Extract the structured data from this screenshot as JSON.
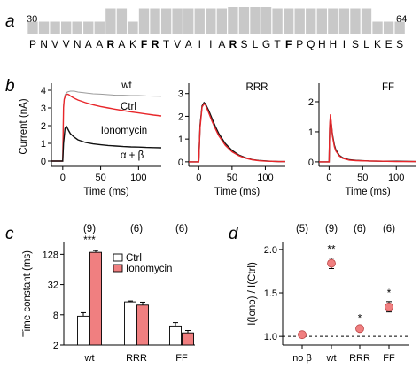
{
  "panel_letters": {
    "a": "a",
    "b": "b",
    "c": "c",
    "d": "d"
  },
  "sequence": {
    "start_label": "30",
    "end_label": "64",
    "residues": [
      {
        "aa": "P",
        "c": "#000000"
      },
      {
        "aa": "N",
        "c": "#000000"
      },
      {
        "aa": "V",
        "c": "#000000"
      },
      {
        "aa": "V",
        "c": "#000000"
      },
      {
        "aa": "N",
        "c": "#000000"
      },
      {
        "aa": "A",
        "c": "#000000"
      },
      {
        "aa": "A",
        "c": "#000000"
      },
      {
        "aa": "R",
        "c": "#1d3fb0"
      },
      {
        "aa": "A",
        "c": "#000000"
      },
      {
        "aa": "K",
        "c": "#000000"
      },
      {
        "aa": "F",
        "c": "#1f9a1f"
      },
      {
        "aa": "R",
        "c": "#1d3fb0"
      },
      {
        "aa": "T",
        "c": "#000000"
      },
      {
        "aa": "V",
        "c": "#000000"
      },
      {
        "aa": "A",
        "c": "#000000"
      },
      {
        "aa": "I",
        "c": "#000000"
      },
      {
        "aa": "I",
        "c": "#000000"
      },
      {
        "aa": "A",
        "c": "#000000"
      },
      {
        "aa": "R",
        "c": "#1d3fb0"
      },
      {
        "aa": "S",
        "c": "#000000"
      },
      {
        "aa": "L",
        "c": "#000000"
      },
      {
        "aa": "G",
        "c": "#000000"
      },
      {
        "aa": "T",
        "c": "#000000"
      },
      {
        "aa": "F",
        "c": "#1f9a1f"
      },
      {
        "aa": "P",
        "c": "#000000"
      },
      {
        "aa": "Q",
        "c": "#000000"
      },
      {
        "aa": "H",
        "c": "#000000"
      },
      {
        "aa": "H",
        "c": "#000000"
      },
      {
        "aa": "I",
        "c": "#000000"
      },
      {
        "aa": "S",
        "c": "#000000"
      },
      {
        "aa": "L",
        "c": "#000000"
      },
      {
        "aa": "K",
        "c": "#000000"
      },
      {
        "aa": "E",
        "c": "#000000"
      },
      {
        "aa": "S",
        "c": "#000000"
      }
    ],
    "conservation": [
      0.45,
      0.45,
      0.45,
      0.45,
      0.45,
      0.45,
      0.45,
      0.95,
      0.95,
      0.45,
      0.95,
      0.95,
      0.95,
      0.95,
      0.95,
      0.95,
      0.95,
      0.95,
      1.0,
      1.0,
      1.0,
      1.0,
      0.95,
      0.95,
      0.95,
      0.95,
      0.95,
      0.95,
      0.95,
      0.95,
      0.95,
      0.45,
      0.45,
      0.45
    ],
    "bar_color": "#c8c8c8"
  },
  "chart_data": [
    {
      "type": "line",
      "panel": "b-wt",
      "ylabel": "Current (nA)",
      "xlabel": "Time (ms)",
      "xlim": [
        -15,
        130
      ],
      "ylim": [
        -0.3,
        4.2
      ],
      "xticks": [
        0,
        50,
        100
      ],
      "yticks": [
        0,
        1,
        2,
        3,
        4
      ],
      "annotations": [
        "wt",
        "Ctrl",
        "Ionomycin",
        "α + β"
      ],
      "series": [
        {
          "name": "Ctrl",
          "color": "#9a9a9a",
          "x": [
            -15,
            0,
            1,
            3,
            6,
            10,
            15,
            20,
            30,
            40,
            50,
            60,
            70,
            80,
            90,
            100,
            110,
            120,
            130
          ],
          "y": [
            0,
            0,
            3.2,
            3.75,
            3.9,
            3.95,
            3.95,
            3.9,
            3.85,
            3.8,
            3.78,
            3.75,
            3.72,
            3.72,
            3.7,
            3.7,
            3.68,
            3.67,
            3.66
          ]
        },
        {
          "name": "Ionomycin",
          "color": "#e8262a",
          "x": [
            -15,
            0,
            1,
            2,
            4,
            6,
            8,
            10,
            15,
            20,
            30,
            40,
            50,
            60,
            70,
            80,
            90,
            100,
            110,
            120,
            130
          ],
          "y": [
            0,
            0,
            3.0,
            3.5,
            3.72,
            3.78,
            3.75,
            3.68,
            3.55,
            3.45,
            3.3,
            3.18,
            3.08,
            3.0,
            2.92,
            2.85,
            2.78,
            2.72,
            2.66,
            2.6,
            2.55
          ]
        },
        {
          "name": "α + β",
          "color": "#111111",
          "x": [
            -15,
            0,
            1,
            3,
            5,
            8,
            10,
            15,
            20,
            30,
            40,
            50,
            60,
            70,
            80,
            90,
            100,
            110,
            120,
            130
          ],
          "y": [
            0,
            0,
            1.0,
            1.85,
            1.95,
            1.7,
            1.55,
            1.35,
            1.2,
            1.05,
            0.97,
            0.92,
            0.88,
            0.85,
            0.82,
            0.8,
            0.79,
            0.77,
            0.76,
            0.75
          ]
        }
      ]
    },
    {
      "type": "line",
      "panel": "b-RRR",
      "title": "RRR",
      "xlabel": "Time (ms)",
      "xlim": [
        -15,
        130
      ],
      "ylim": [
        -0.2,
        3.3
      ],
      "xticks": [
        0,
        50,
        100
      ],
      "yticks": [
        0,
        1,
        2,
        3
      ],
      "series": [
        {
          "name": "Ctrl",
          "color": "#111111",
          "x": [
            -15,
            0,
            2,
            5,
            8,
            10,
            15,
            20,
            25,
            30,
            40,
            50,
            60,
            70,
            80,
            90,
            100,
            110,
            120,
            130
          ],
          "y": [
            0,
            0,
            1.6,
            2.45,
            2.6,
            2.55,
            2.25,
            1.9,
            1.55,
            1.25,
            0.8,
            0.5,
            0.3,
            0.18,
            0.1,
            0.06,
            0.04,
            0.02,
            0.01,
            0.01
          ]
        },
        {
          "name": "Ionomycin",
          "color": "#e8262a",
          "x": [
            -15,
            0,
            2,
            5,
            8,
            10,
            15,
            20,
            25,
            30,
            40,
            50,
            60,
            70,
            80,
            90,
            100,
            110,
            120,
            130
          ],
          "y": [
            0,
            0,
            1.5,
            2.4,
            2.55,
            2.5,
            2.15,
            1.78,
            1.45,
            1.15,
            0.72,
            0.44,
            0.27,
            0.16,
            0.09,
            0.05,
            0.03,
            0.02,
            0.01,
            0.01
          ]
        }
      ]
    },
    {
      "type": "line",
      "panel": "b-FF",
      "title": "FF",
      "xlabel": "Time (ms)",
      "xlim": [
        -15,
        130
      ],
      "ylim": [
        -0.15,
        2.5
      ],
      "xticks": [
        0,
        50,
        100
      ],
      "yticks": [
        0,
        1,
        2
      ],
      "series": [
        {
          "name": "Ctrl",
          "color": "#111111",
          "x": [
            -15,
            0,
            1,
            2,
            3,
            5,
            8,
            10,
            15,
            20,
            30,
            40,
            60,
            80,
            100,
            130
          ],
          "y": [
            0,
            0,
            1.1,
            1.5,
            1.3,
            0.9,
            0.55,
            0.4,
            0.22,
            0.14,
            0.07,
            0.05,
            0.03,
            0.02,
            0.02,
            0.01
          ]
        },
        {
          "name": "Ionomycin",
          "color": "#e8262a",
          "x": [
            -15,
            0,
            1,
            2,
            3,
            5,
            8,
            10,
            15,
            20,
            30,
            40,
            60,
            80,
            100,
            130
          ],
          "y": [
            0,
            0,
            1.2,
            1.58,
            1.35,
            0.85,
            0.5,
            0.36,
            0.2,
            0.12,
            0.06,
            0.04,
            0.03,
            0.02,
            0.01,
            0.01
          ]
        }
      ]
    },
    {
      "type": "bar",
      "panel": "c",
      "ylabel": "Time constant (ms)",
      "yscale": "log2",
      "ylim": [
        2,
        220
      ],
      "yticks": [
        2,
        8,
        32,
        128
      ],
      "categories": [
        "wt",
        "RRR",
        "FF"
      ],
      "n_labels": [
        "(9)",
        "(6)",
        "(6)"
      ],
      "significance": [
        "***",
        "",
        ""
      ],
      "legend": [
        "Ctrl",
        "Ionomycin"
      ],
      "legend_position": "top-right",
      "series": [
        {
          "name": "Ctrl",
          "color": "#ffffff",
          "values": [
            7.5,
            14.5,
            4.8
          ],
          "errors": [
            1.3,
            0.6,
            0.8
          ]
        },
        {
          "name": "Ionomycin",
          "color": "#f07f80",
          "values": [
            140,
            12.5,
            3.5
          ],
          "errors": [
            12,
            1.8,
            0.4
          ]
        }
      ]
    },
    {
      "type": "scatter",
      "panel": "d",
      "ylabel": "I(Iono) / I(Ctrl)",
      "ylim": [
        0.9,
        2.08
      ],
      "yticks": [
        1.0,
        1.5,
        2.0
      ],
      "categories": [
        "no β",
        "wt",
        "RRR",
        "FF"
      ],
      "n_labels": [
        "(5)",
        "(9)",
        "(6)",
        "(6)"
      ],
      "significance": [
        "",
        "**",
        "*",
        "*"
      ],
      "reference_line": 1.0,
      "marker_color": "#f07f80",
      "values": [
        1.02,
        1.84,
        1.09,
        1.34
      ],
      "errors": [
        0.03,
        0.06,
        0.02,
        0.06
      ]
    }
  ]
}
